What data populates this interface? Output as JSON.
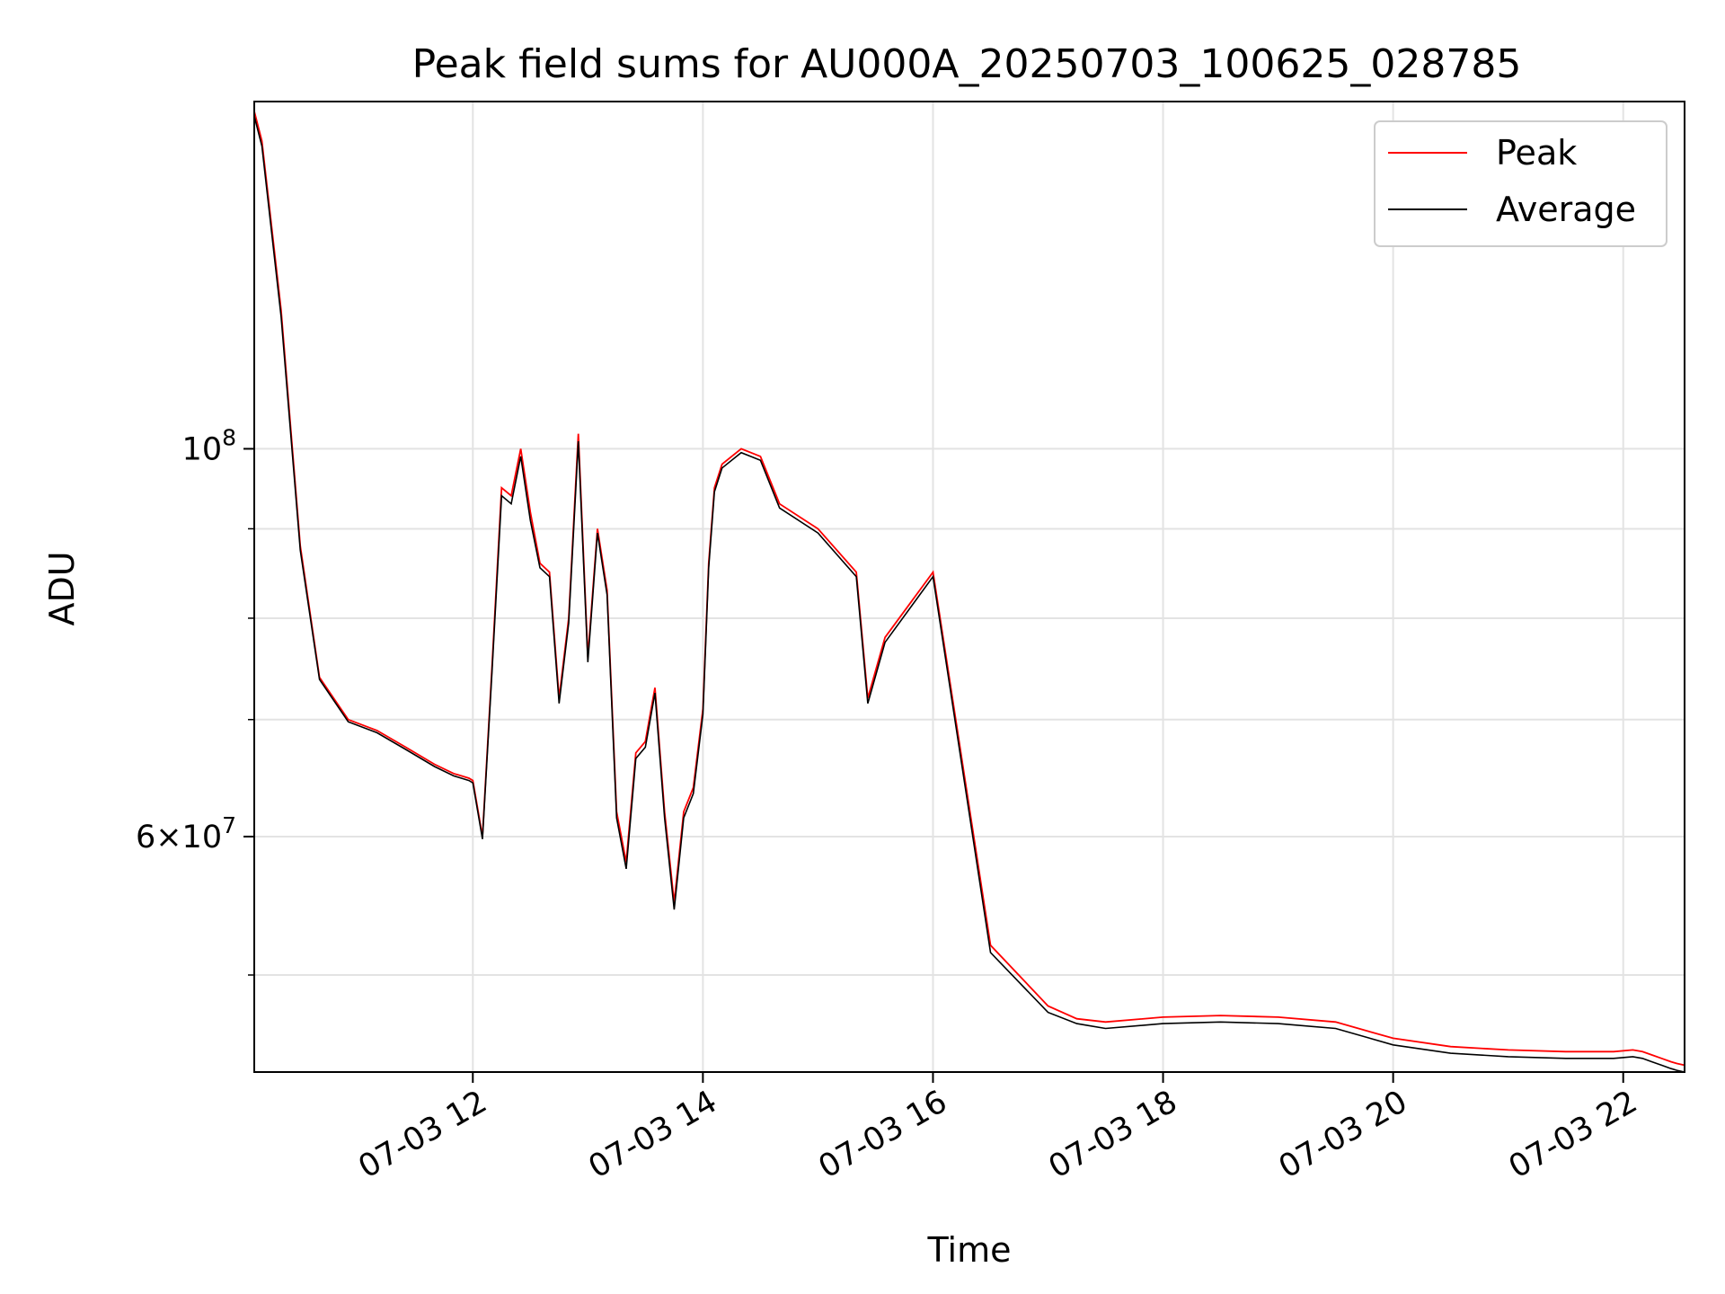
{
  "chart_data": {
    "type": "line",
    "title": "Peak field sums for AU000A_20250703_100625_028785",
    "xlabel": "Time",
    "ylabel": "ADU",
    "x_axis": "time",
    "y_scale": "log",
    "xlim": [
      "2025-07-03T10:06",
      "2025-07-03T22:32"
    ],
    "ylim": [
      44000000,
      158000000
    ],
    "grid": true,
    "legend_position": "upper right",
    "x_ticks": [
      {
        "value": "2025-07-03T12:00",
        "label": "07-03 12"
      },
      {
        "value": "2025-07-03T14:00",
        "label": "07-03 14"
      },
      {
        "value": "2025-07-03T16:00",
        "label": "07-03 16"
      },
      {
        "value": "2025-07-03T18:00",
        "label": "07-03 18"
      },
      {
        "value": "2025-07-03T20:00",
        "label": "07-03 20"
      },
      {
        "value": "2025-07-03T22:00",
        "label": "07-03 22"
      }
    ],
    "y_major_ticks": [
      {
        "value": 100000000,
        "base": "10",
        "exponent": "8"
      },
      {
        "value": 60000000,
        "base": "6×10",
        "exponent": "7"
      }
    ],
    "y_minor_ticks": [
      50000000,
      70000000,
      80000000,
      90000000
    ],
    "series": [
      {
        "name": "Peak",
        "color": "#ff0000",
        "x": [
          "2025-07-03T10:06",
          "2025-07-03T10:10",
          "2025-07-03T10:20",
          "2025-07-03T10:30",
          "2025-07-03T10:40",
          "2025-07-03T10:55",
          "2025-07-03T11:10",
          "2025-07-03T11:25",
          "2025-07-03T11:40",
          "2025-07-03T11:50",
          "2025-07-03T11:58",
          "2025-07-03T12:00",
          "2025-07-03T12:05",
          "2025-07-03T12:10",
          "2025-07-03T12:15",
          "2025-07-03T12:20",
          "2025-07-03T12:25",
          "2025-07-03T12:30",
          "2025-07-03T12:35",
          "2025-07-03T12:40",
          "2025-07-03T12:45",
          "2025-07-03T12:50",
          "2025-07-03T12:55",
          "2025-07-03T13:00",
          "2025-07-03T13:05",
          "2025-07-03T13:10",
          "2025-07-03T13:15",
          "2025-07-03T13:20",
          "2025-07-03T13:25",
          "2025-07-03T13:30",
          "2025-07-03T13:35",
          "2025-07-03T13:40",
          "2025-07-03T13:45",
          "2025-07-03T13:50",
          "2025-07-03T13:55",
          "2025-07-03T14:00",
          "2025-07-03T14:03",
          "2025-07-03T14:06",
          "2025-07-03T14:10",
          "2025-07-03T14:20",
          "2025-07-03T14:30",
          "2025-07-03T14:40",
          "2025-07-03T15:00",
          "2025-07-03T15:20",
          "2025-07-03T15:26",
          "2025-07-03T15:35",
          "2025-07-03T16:00",
          "2025-07-03T16:30",
          "2025-07-03T17:00",
          "2025-07-03T17:15",
          "2025-07-03T17:30",
          "2025-07-03T18:00",
          "2025-07-03T18:30",
          "2025-07-03T19:00",
          "2025-07-03T19:30",
          "2025-07-03T20:00",
          "2025-07-03T20:30",
          "2025-07-03T21:00",
          "2025-07-03T21:30",
          "2025-07-03T21:55",
          "2025-07-03T22:05",
          "2025-07-03T22:10",
          "2025-07-03T22:15",
          "2025-07-03T22:20",
          "2025-07-03T22:25",
          "2025-07-03T22:28",
          "2025-07-03T22:32"
        ],
        "y": [
          156000000,
          150000000,
          120000000,
          88000000,
          74000000,
          70000000,
          69000000,
          67500000,
          66000000,
          65200000,
          64800000,
          64600000,
          60000000,
          75000000,
          95000000,
          94000000,
          100000000,
          92000000,
          86000000,
          85000000,
          72000000,
          80000000,
          102000000,
          76000000,
          90000000,
          83000000,
          62000000,
          58000000,
          67000000,
          68000000,
          73000000,
          62000000,
          55000000,
          62000000,
          64000000,
          71000000,
          86000000,
          95000000,
          98000000,
          100000000,
          99000000,
          93000000,
          90000000,
          85000000,
          72000000,
          78000000,
          85000000,
          52000000,
          48000000,
          47200000,
          47000000,
          47300000,
          47400000,
          47300000,
          47000000,
          46000000,
          45500000,
          45300000,
          45200000,
          45200000,
          45300000,
          45200000,
          45000000,
          44800000,
          44600000,
          44500000,
          44400000
        ]
      },
      {
        "name": "Average",
        "color": "#000000",
        "x": [
          "2025-07-03T10:06",
          "2025-07-03T10:10",
          "2025-07-03T10:20",
          "2025-07-03T10:30",
          "2025-07-03T10:40",
          "2025-07-03T10:55",
          "2025-07-03T11:10",
          "2025-07-03T11:25",
          "2025-07-03T11:40",
          "2025-07-03T11:50",
          "2025-07-03T11:58",
          "2025-07-03T12:00",
          "2025-07-03T12:05",
          "2025-07-03T12:10",
          "2025-07-03T12:15",
          "2025-07-03T12:20",
          "2025-07-03T12:25",
          "2025-07-03T12:30",
          "2025-07-03T12:35",
          "2025-07-03T12:40",
          "2025-07-03T12:45",
          "2025-07-03T12:50",
          "2025-07-03T12:55",
          "2025-07-03T13:00",
          "2025-07-03T13:05",
          "2025-07-03T13:10",
          "2025-07-03T13:15",
          "2025-07-03T13:20",
          "2025-07-03T13:25",
          "2025-07-03T13:30",
          "2025-07-03T13:35",
          "2025-07-03T13:40",
          "2025-07-03T13:45",
          "2025-07-03T13:50",
          "2025-07-03T13:55",
          "2025-07-03T14:00",
          "2025-07-03T14:03",
          "2025-07-03T14:06",
          "2025-07-03T14:10",
          "2025-07-03T14:20",
          "2025-07-03T14:30",
          "2025-07-03T14:40",
          "2025-07-03T15:00",
          "2025-07-03T15:20",
          "2025-07-03T15:26",
          "2025-07-03T15:35",
          "2025-07-03T16:00",
          "2025-07-03T16:30",
          "2025-07-03T17:00",
          "2025-07-03T17:15",
          "2025-07-03T17:30",
          "2025-07-03T18:00",
          "2025-07-03T18:30",
          "2025-07-03T19:00",
          "2025-07-03T19:30",
          "2025-07-03T20:00",
          "2025-07-03T20:30",
          "2025-07-03T21:00",
          "2025-07-03T21:30",
          "2025-07-03T21:55",
          "2025-07-03T22:05",
          "2025-07-03T22:10",
          "2025-07-03T22:15",
          "2025-07-03T22:20",
          "2025-07-03T22:25",
          "2025-07-03T22:28",
          "2025-07-03T22:32"
        ],
        "y": [
          155000000,
          149000000,
          119000000,
          87500000,
          73800000,
          69800000,
          68800000,
          67300000,
          65800000,
          65000000,
          64600000,
          64400000,
          59800000,
          74500000,
          94000000,
          93000000,
          99000000,
          91000000,
          85500000,
          84500000,
          71500000,
          79500000,
          101000000,
          75500000,
          89500000,
          82500000,
          61500000,
          57500000,
          66500000,
          67500000,
          72500000,
          61500000,
          54500000,
          61500000,
          63500000,
          70500000,
          85500000,
          94500000,
          97500000,
          99500000,
          98500000,
          92500000,
          89500000,
          84500000,
          71500000,
          77500000,
          84500000,
          51500000,
          47600000,
          46900000,
          46600000,
          46900000,
          47000000,
          46900000,
          46600000,
          45600000,
          45100000,
          44900000,
          44800000,
          44800000,
          44900000,
          44800000,
          44600000,
          44400000,
          44200000,
          44100000,
          44000000
        ]
      }
    ]
  }
}
